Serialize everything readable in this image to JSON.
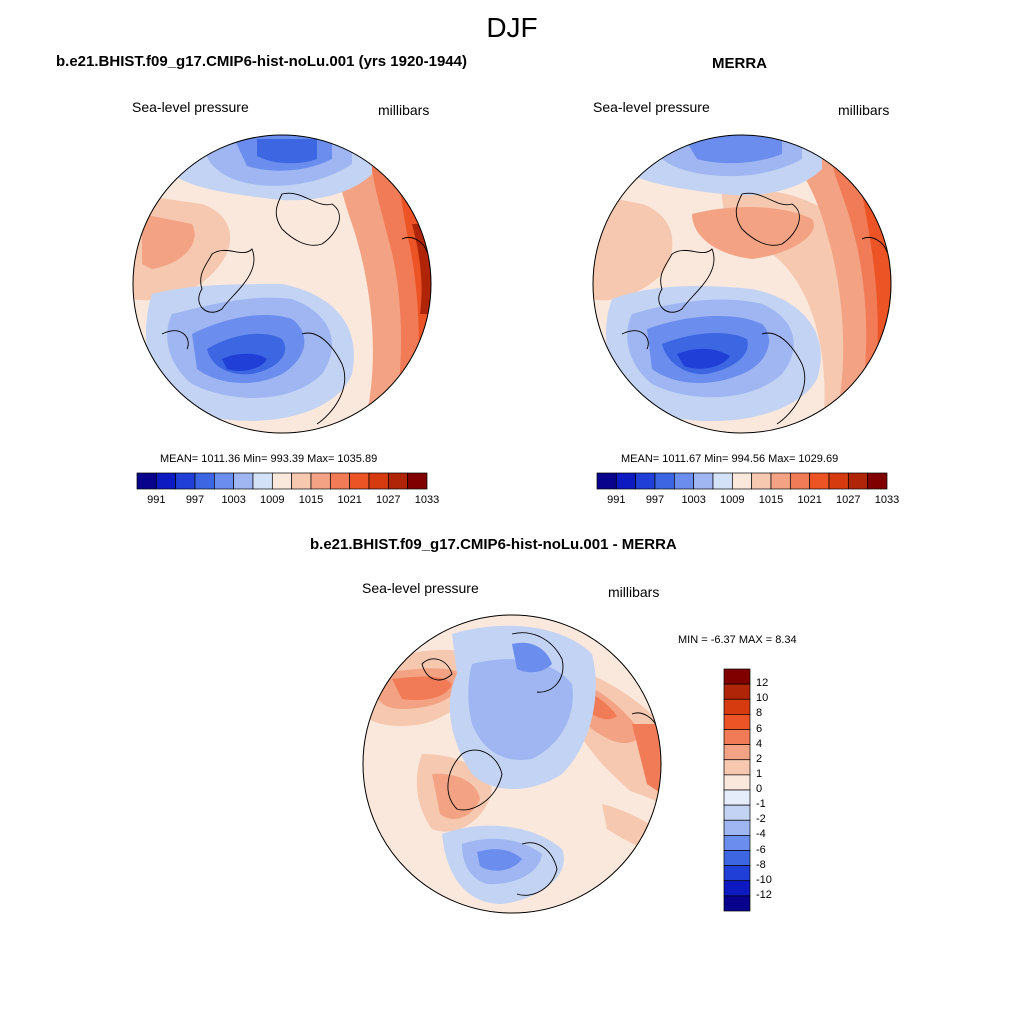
{
  "page": {
    "title": "DJF"
  },
  "panels": [
    {
      "title": "b.e21.BHIST.f09_g17.CMIP6-hist-noLu.001 (yrs 1920-1944)",
      "variable": "Sea-level pressure",
      "units": "millibars",
      "stats": "MEAN= 1011.36  Min= 993.39  Max= 1035.89"
    },
    {
      "title": "MERRA",
      "variable": "Sea-level pressure",
      "units": "millibars",
      "stats": "MEAN= 1011.67  Min= 994.56  Max= 1029.69"
    },
    {
      "title": "b.e21.BHIST.f09_g17.CMIP6-hist-noLu.001 - MERRA",
      "variable": "Sea-level pressure",
      "units": "millibars",
      "stats": "MIN =  -6.37 MAX =   8.34"
    }
  ],
  "colorbars": {
    "absolute": {
      "labels": [
        "991",
        "997",
        "1003",
        "1009",
        "1015",
        "1021",
        "1027",
        "1033"
      ],
      "colors": [
        "#08028c",
        "#0d1ac2",
        "#1f3fd6",
        "#3d66e3",
        "#6b8ded",
        "#9fb6f2",
        "#d4e2f7",
        "#fbe8dc",
        "#f6c8b0",
        "#f3a384",
        "#f17b56",
        "#ec5325",
        "#d63b10",
        "#b02508",
        "#800000"
      ]
    },
    "difference": {
      "labels": [
        "12",
        "10",
        "8",
        "6",
        "4",
        "2",
        "1",
        "0",
        "-1",
        "-2",
        "-4",
        "-6",
        "-8",
        "-10",
        "-12"
      ],
      "colors": [
        "#800000",
        "#b02508",
        "#d63b10",
        "#ec5325",
        "#f17b56",
        "#f3a384",
        "#f6c8b0",
        "#fbe8dc",
        "#e4edf9",
        "#c3d3f3",
        "#9fb6f2",
        "#6b8ded",
        "#3d66e3",
        "#1f3fd6",
        "#0d1ac2",
        "#08028c"
      ]
    }
  }
}
